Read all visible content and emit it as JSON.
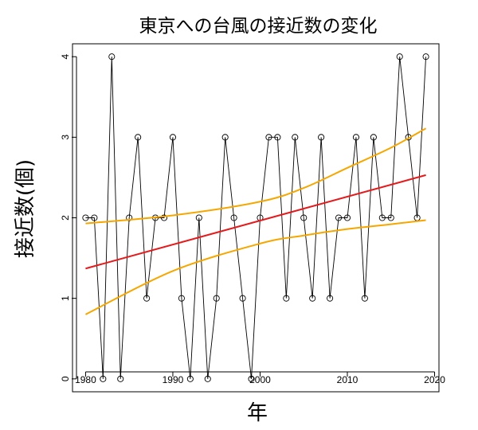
{
  "chart_data": {
    "type": "line",
    "title": "東京への台風の接近数の変化",
    "xlabel": "年",
    "ylabel": "接近数(個)",
    "xlim": [
      1978.5,
      2020.5
    ],
    "ylim": [
      -0.16,
      4.16
    ],
    "x_ticks": [
      1980,
      1990,
      2000,
      2010,
      2020
    ],
    "y_ticks": [
      0,
      1,
      2,
      3,
      4
    ],
    "grid": false,
    "legend": "none",
    "series": [
      {
        "role": "observed",
        "color": "#000000",
        "marker": "open-circle",
        "x": [
          1980,
          1981,
          1982,
          1983,
          1984,
          1985,
          1986,
          1987,
          1988,
          1989,
          1990,
          1991,
          1992,
          1993,
          1994,
          1995,
          1996,
          1997,
          1998,
          1999,
          2000,
          2001,
          2002,
          2003,
          2004,
          2005,
          2006,
          2007,
          2008,
          2009,
          2010,
          2011,
          2012,
          2013,
          2014,
          2015,
          2016,
          2017,
          2018,
          2019
        ],
        "y": [
          2,
          2,
          0,
          4,
          0,
          2,
          3,
          1,
          2,
          2,
          3,
          1,
          0,
          2,
          0,
          1,
          3,
          2,
          1,
          0,
          2,
          3,
          3,
          1,
          3,
          2,
          1,
          3,
          1,
          2,
          2,
          3,
          1,
          3,
          2,
          2,
          4,
          3,
          2,
          4
        ]
      },
      {
        "role": "trend",
        "color": "#e41a1c",
        "x": [
          1980,
          2019
        ],
        "y": [
          1.37,
          2.53
        ]
      },
      {
        "role": "upper-band",
        "color": "#f5a700",
        "x": [
          1980,
          1990,
          2000,
          2005,
          2010,
          2015,
          2019
        ],
        "y": [
          1.93,
          2.03,
          2.2,
          2.37,
          2.62,
          2.87,
          3.11
        ]
      },
      {
        "role": "lower-band",
        "color": "#f5a700",
        "x": [
          1980,
          1990,
          2000,
          2005,
          2010,
          2015,
          2019
        ],
        "y": [
          0.8,
          1.34,
          1.68,
          1.78,
          1.86,
          1.92,
          1.97
        ]
      }
    ]
  }
}
